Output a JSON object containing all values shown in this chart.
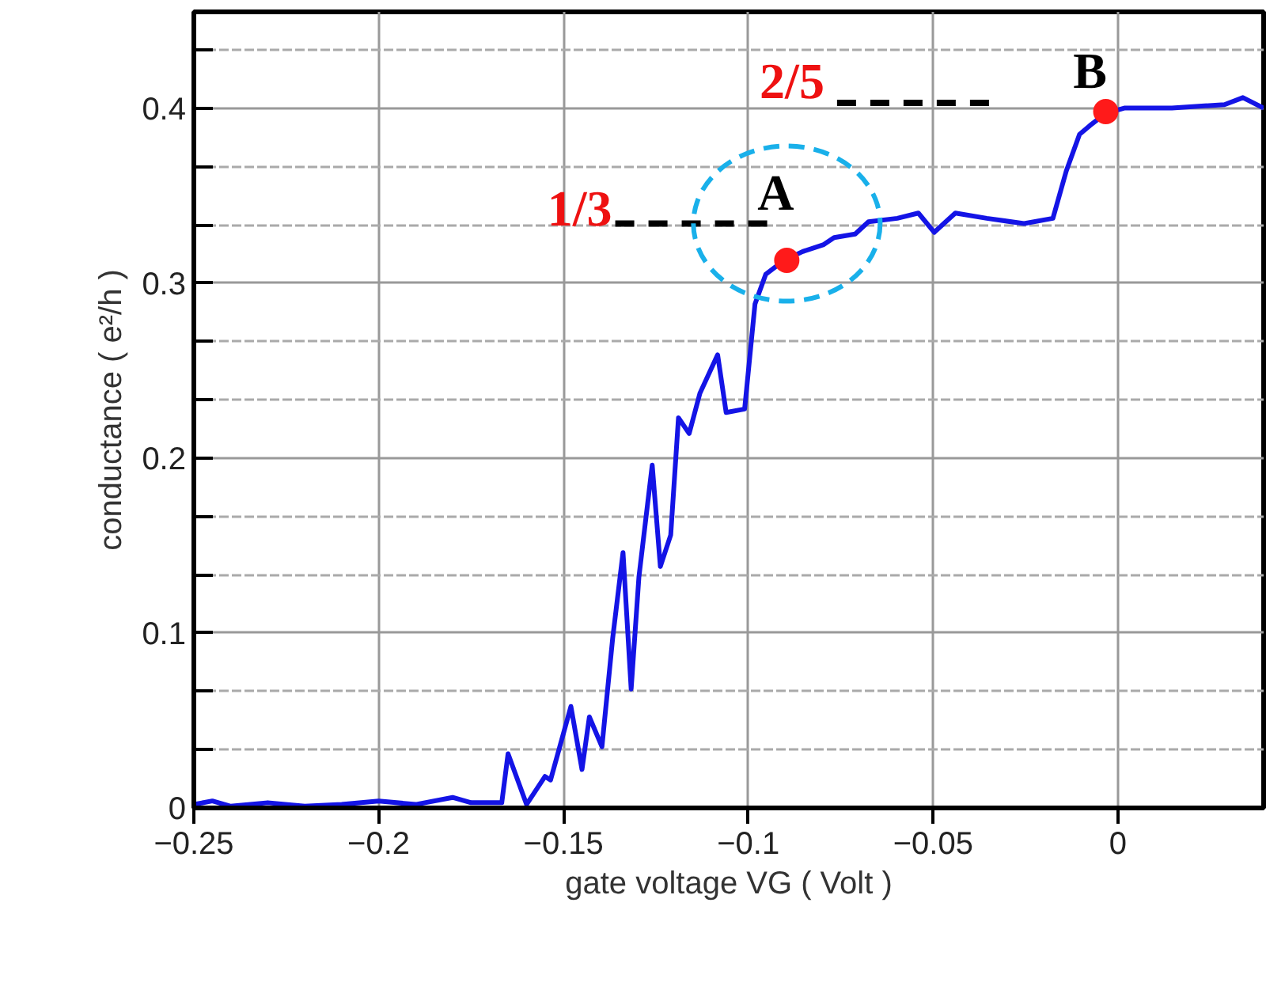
{
  "chart_data": {
    "type": "line",
    "xlabel": "gate voltage VG ( Volt )",
    "ylabel": "conductance ( e²/h )",
    "xlim": [
      -0.25,
      0.0394
    ],
    "ylim": [
      0,
      0.455
    ],
    "xticks": [
      {
        "value": -0.25,
        "label": "−0.25"
      },
      {
        "value": -0.2,
        "label": "−0.2"
      },
      {
        "value": -0.15,
        "label": "−0.15"
      },
      {
        "value": -0.1,
        "label": "−0.1"
      },
      {
        "value": -0.05,
        "label": "−0.05"
      },
      0
    ],
    "yticks": [
      0,
      {
        "value": 0.0333,
        "label": null
      },
      {
        "value": 0.0667,
        "label": null
      },
      0.1,
      {
        "value": 0.1333,
        "label": null
      },
      {
        "value": 0.1667,
        "label": null
      },
      0.2,
      {
        "value": 0.2333,
        "label": null
      },
      {
        "value": 0.2667,
        "label": null
      },
      0.3,
      {
        "value": 0.3333,
        "label": null
      },
      {
        "value": 0.3667,
        "label": null
      },
      0.4,
      {
        "value": 0.4333,
        "label": null
      }
    ],
    "grid": true,
    "series": [
      {
        "color": "#1414e6",
        "x": [
          -0.25,
          -0.245,
          -0.24,
          -0.23,
          -0.22,
          -0.21,
          -0.2,
          -0.19,
          -0.18,
          -0.175,
          -0.1667,
          -0.165,
          -0.16,
          -0.155,
          -0.1535,
          -0.148,
          -0.145,
          -0.143,
          -0.1396,
          -0.1367,
          -0.1339,
          -0.1317,
          -0.1296,
          -0.126,
          -0.1238,
          -0.121,
          -0.1189,
          -0.116,
          -0.1131,
          -0.1083,
          -0.106,
          -0.101,
          -0.0982,
          -0.0953,
          -0.0903,
          -0.0853,
          -0.0796,
          -0.0768,
          -0.0711,
          -0.0675,
          -0.0597,
          -0.054,
          -0.0497,
          -0.044,
          -0.0355,
          -0.0254,
          -0.0176,
          -0.014,
          -0.0104,
          -0.0076,
          -0.0033,
          0.0017,
          0.0146,
          0.0288,
          0.0338,
          0.0394
        ],
        "values": [
          0.002,
          0.004,
          0.001,
          0.003,
          0.001,
          0.002,
          0.004,
          0.002,
          0.006,
          0.003,
          0.003,
          0.031,
          0.002,
          0.018,
          0.016,
          0.058,
          0.022,
          0.052,
          0.035,
          0.097,
          0.146,
          0.068,
          0.132,
          0.196,
          0.138,
          0.156,
          0.223,
          0.214,
          0.237,
          0.259,
          0.226,
          0.228,
          0.288,
          0.305,
          0.313,
          0.318,
          0.322,
          0.326,
          0.328,
          0.335,
          0.337,
          0.34,
          0.329,
          0.34,
          0.337,
          0.334,
          0.337,
          0.364,
          0.385,
          0.39,
          0.397,
          0.4,
          0.4,
          0.402,
          0.406,
          0.4
        ]
      },
      {
        "type": "line",
        "color": "#000000",
        "line_style": "dashed",
        "x": [
          -0.136,
          -0.093
        ],
        "values": [
          0.334,
          0.334
        ]
      },
      {
        "type": "line",
        "color": "#000000",
        "line_style": "dashed",
        "x": [
          -0.076,
          -0.033
        ],
        "values": [
          0.403,
          0.403
        ]
      },
      {
        "type": "scatter",
        "color": "#ff1a1a",
        "marker": "circle",
        "x": [
          -0.0896,
          -0.0033
        ],
        "values": [
          0.313,
          0.398
        ]
      }
    ],
    "annotations": [
      "1/3",
      "2/5",
      "A",
      "B"
    ]
  }
}
